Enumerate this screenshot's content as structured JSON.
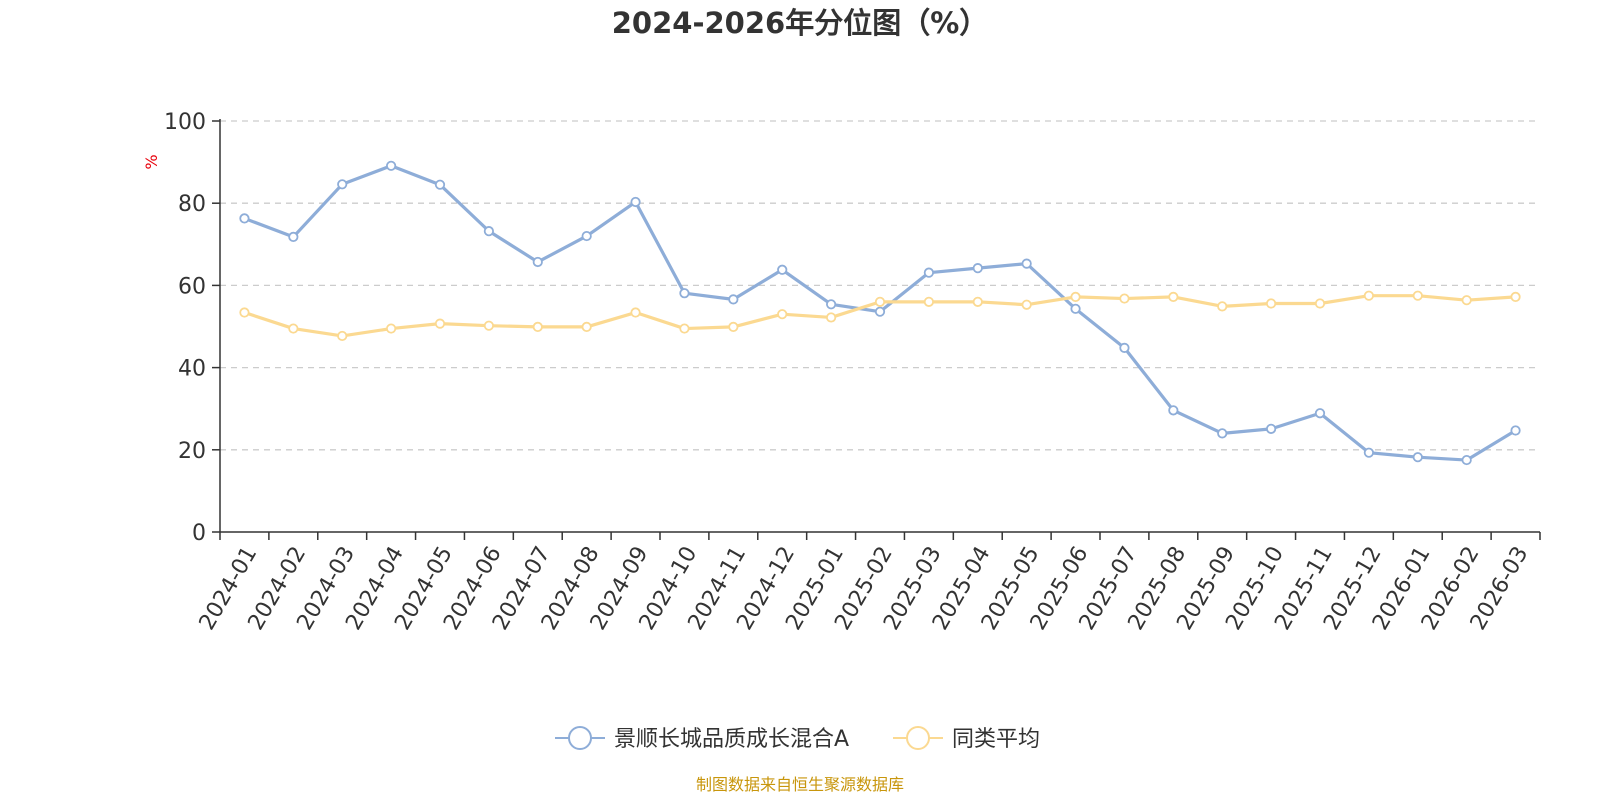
{
  "chart_data": {
    "type": "line",
    "title": "2024-2026年分位图（%）",
    "ylabel": "%",
    "ylim": [
      0,
      100
    ],
    "yticks": [
      0,
      20,
      40,
      60,
      80,
      100
    ],
    "grid": true,
    "legend_position": "bottom-center",
    "categories": [
      "2024-01",
      "2024-02",
      "2024-03",
      "2024-04",
      "2024-05",
      "2024-06",
      "2024-07",
      "2024-08",
      "2024-09",
      "2024-10",
      "2024-11",
      "2024-12",
      "2025-01",
      "2025-02",
      "2025-03",
      "2025-04",
      "2025-05",
      "2025-06",
      "2025-07",
      "2025-08",
      "2025-09",
      "2025-10",
      "2025-11",
      "2025-12",
      "2026-01",
      "2026-02",
      "2026-03"
    ],
    "series": [
      {
        "name": "景顺长城品质成长混合A",
        "color": "#8eadd8",
        "values": [
          76.3,
          71.8,
          84.6,
          89.1,
          84.5,
          73.2,
          65.7,
          72.0,
          80.3,
          58.1,
          56.6,
          63.8,
          55.4,
          53.6,
          63.1,
          64.2,
          65.3,
          54.3,
          44.8,
          29.6,
          24.0,
          25.1,
          28.9,
          19.3,
          18.2,
          17.5,
          24.7
        ]
      },
      {
        "name": "同类平均",
        "color": "#fbd991",
        "values": [
          53.4,
          49.5,
          47.7,
          49.5,
          50.7,
          50.2,
          49.9,
          49.9,
          53.4,
          49.5,
          49.9,
          53.0,
          52.2,
          56.0,
          56.0,
          56.0,
          55.3,
          57.2,
          56.8,
          57.2,
          54.9,
          55.6,
          55.6,
          57.5,
          57.5,
          56.4,
          57.2
        ]
      }
    ]
  },
  "footer": {
    "source_note": "制图数据来自恒生聚源数据库"
  }
}
